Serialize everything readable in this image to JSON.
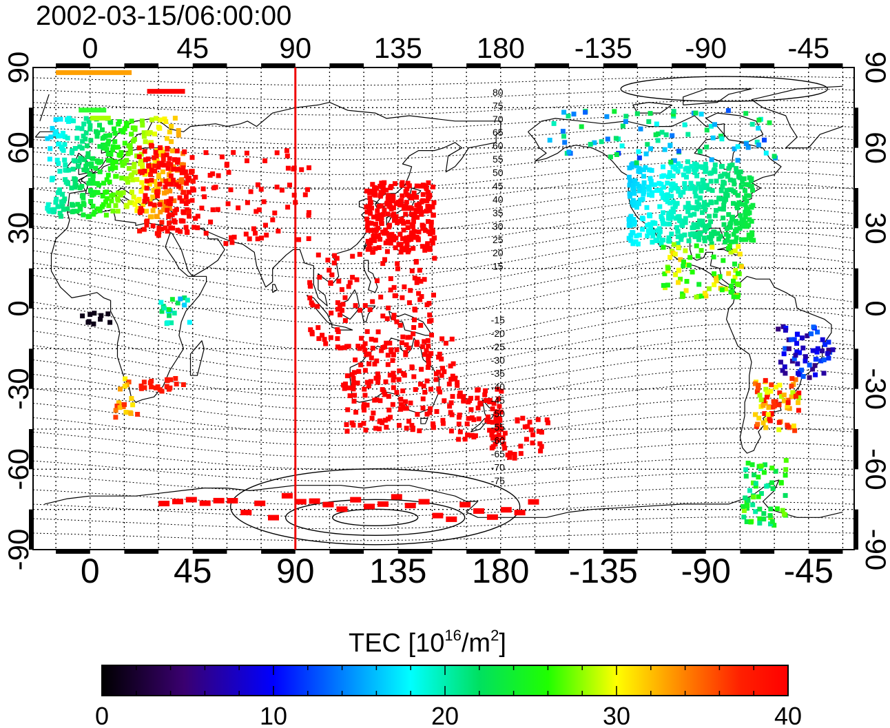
{
  "title": "2002-03-15/06:00:00",
  "map": {
    "lon_ticks_top": [
      "0",
      "45",
      "90",
      "135",
      "180",
      "-135",
      "-90",
      "-45"
    ],
    "lon_ticks_bottom": [
      "0",
      "45",
      "90",
      "135",
      "180",
      "-135",
      "-90",
      "-45"
    ],
    "lat_ticks_left": [
      "90",
      "60",
      "30",
      "0",
      "-30",
      "-60",
      "-90"
    ],
    "lat_ticks_right": [
      "90",
      "60",
      "30",
      "0",
      "-30",
      "-60",
      "-90"
    ],
    "lon_range": [
      -25,
      335
    ],
    "lat_range": [
      -90,
      90
    ],
    "subsolar_meridian_lon": 90,
    "magnetic_lat_labels_north": [
      "80",
      "75",
      "70",
      "65",
      "60",
      "55",
      "50",
      "45",
      "40",
      "35",
      "30",
      "25",
      "20",
      "15"
    ],
    "magnetic_lat_labels_south": [
      "-15",
      "-20",
      "-25",
      "-30",
      "-35",
      "-40",
      "-45",
      "-50",
      "-55",
      "-60",
      "-65",
      "-70",
      "-75"
    ],
    "colors": {
      "subsolar_line": "#ee0000",
      "coast": "#000000",
      "grid": "#000000"
    }
  },
  "colorbar": {
    "label": "TEC  [10",
    "label_exp": "16",
    "label_unit": "/m",
    "label_unit_exp": "2",
    "label_close": "]",
    "min": 0,
    "max": 40,
    "ticks": [
      "0",
      "10",
      "20",
      "30",
      "40"
    ]
  }
}
